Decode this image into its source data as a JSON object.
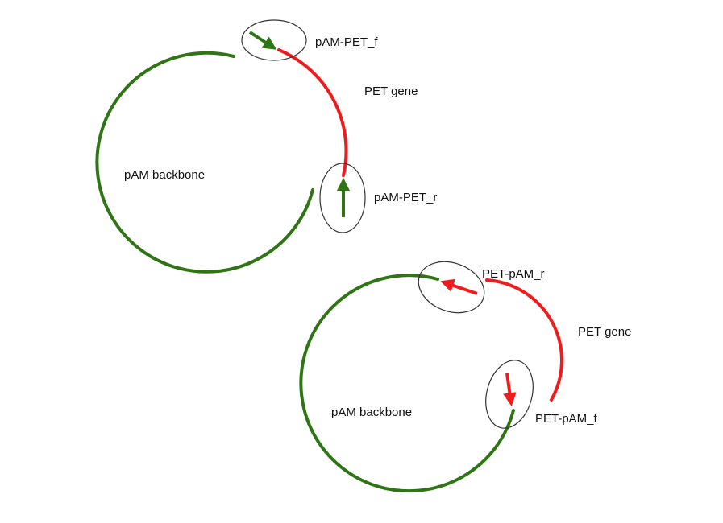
{
  "colors": {
    "backbone": "#2f7515",
    "gene": "#ee1c1c",
    "callout": "#333333"
  },
  "diagram_top": {
    "backbone_label": "pAM backbone",
    "gene_label": "PET gene",
    "forward_primer_label": "pAM-PET_f",
    "reverse_primer_label": "pAM-PET_r"
  },
  "diagram_bottom": {
    "backbone_label": "pAM backbone",
    "gene_label": "PET gene",
    "forward_primer_label": "PET-pAM_f",
    "reverse_primer_label": "PET-pAM_r"
  }
}
